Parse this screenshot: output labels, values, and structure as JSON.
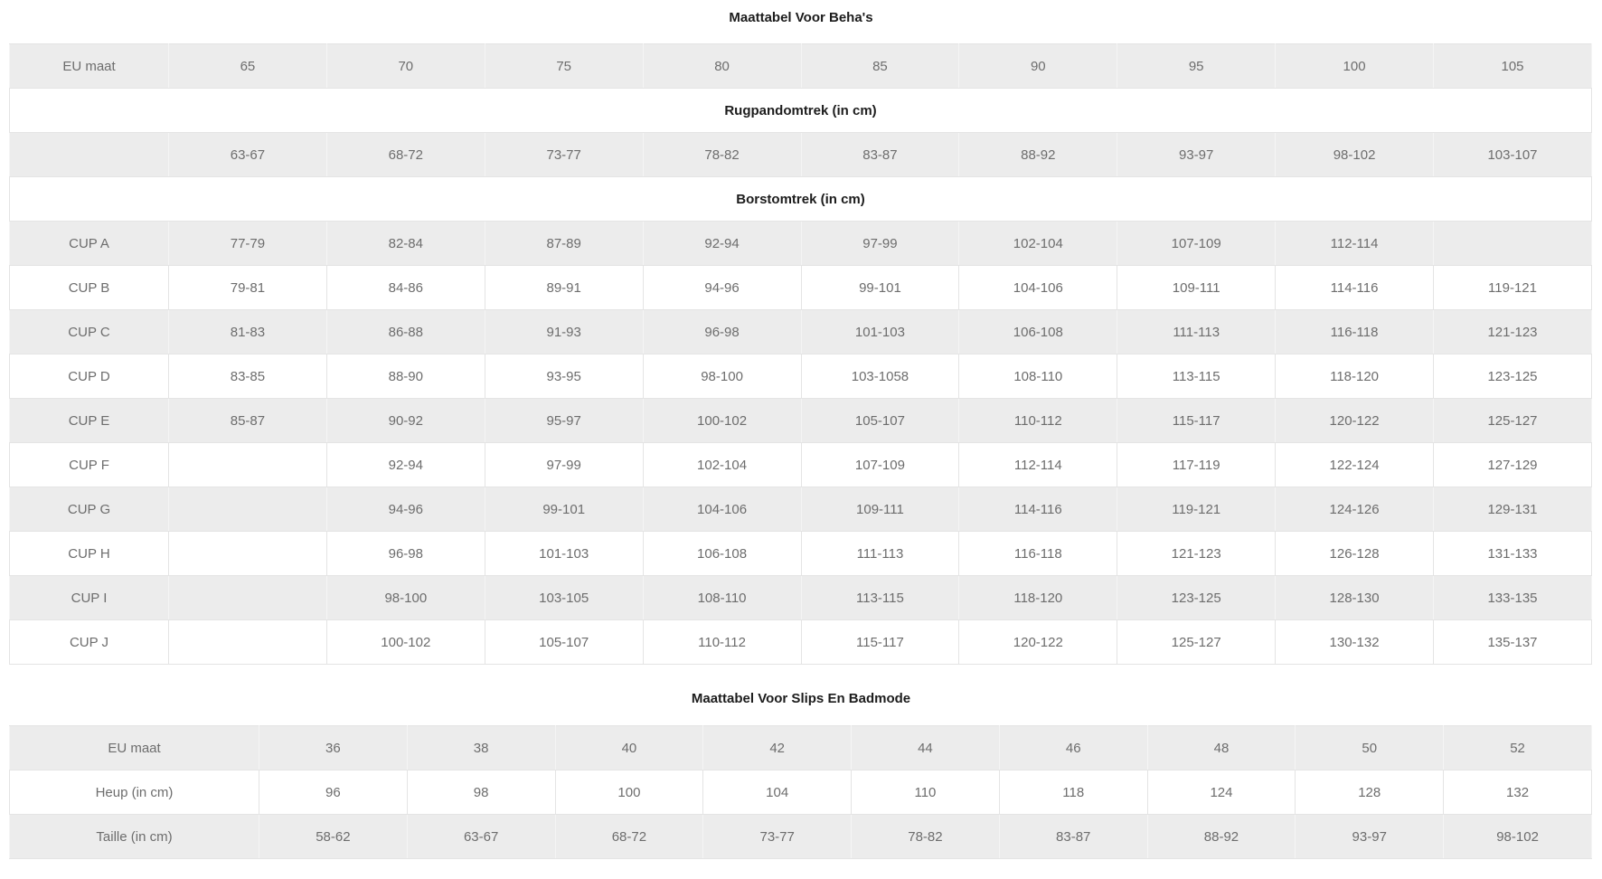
{
  "colors": {
    "stripe": "#ececec",
    "cell_text": "#6d6d6d",
    "heading_text": "#1c1c1c",
    "border": "#e4e4e4"
  },
  "tables": [
    {
      "title": "Maattabel Voor Beha's",
      "columns": 10,
      "rows": [
        {
          "type": "data",
          "shaded": true,
          "cells": [
            "EU maat",
            "65",
            "70",
            "75",
            "80",
            "85",
            "90",
            "95",
            "100",
            "105"
          ]
        },
        {
          "type": "section",
          "label": "Rugpandomtrek (in cm)"
        },
        {
          "type": "data",
          "shaded": true,
          "cells": [
            "",
            "63-67",
            "68-72",
            "73-77",
            "78-82",
            "83-87",
            "88-92",
            "93-97",
            "98-102",
            "103-107"
          ]
        },
        {
          "type": "section",
          "label": "Borstomtrek (in cm)"
        },
        {
          "type": "data",
          "shaded": true,
          "cells": [
            "CUP A",
            "77-79",
            "82-84",
            "87-89",
            "92-94",
            "97-99",
            "102-104",
            "107-109",
            "112-114",
            ""
          ]
        },
        {
          "type": "data",
          "shaded": false,
          "cells": [
            "CUP B",
            "79-81",
            "84-86",
            "89-91",
            "94-96",
            "99-101",
            "104-106",
            "109-111",
            "114-116",
            "119-121"
          ]
        },
        {
          "type": "data",
          "shaded": true,
          "cells": [
            "CUP C",
            "81-83",
            "86-88",
            "91-93",
            "96-98",
            "101-103",
            "106-108",
            "111-113",
            "116-118",
            "121-123"
          ]
        },
        {
          "type": "data",
          "shaded": false,
          "cells": [
            "CUP D",
            "83-85",
            "88-90",
            "93-95",
            "98-100",
            "103-1058",
            "108-110",
            "113-115",
            "118-120",
            "123-125"
          ]
        },
        {
          "type": "data",
          "shaded": true,
          "cells": [
            "CUP E",
            "85-87",
            "90-92",
            "95-97",
            "100-102",
            "105-107",
            "110-112",
            "115-117",
            "120-122",
            "125-127"
          ]
        },
        {
          "type": "data",
          "shaded": false,
          "cells": [
            "CUP F",
            "",
            "92-94",
            "97-99",
            "102-104",
            "107-109",
            "112-114",
            "117-119",
            "122-124",
            "127-129"
          ]
        },
        {
          "type": "data",
          "shaded": true,
          "cells": [
            "CUP G",
            "",
            "94-96",
            "99-101",
            "104-106",
            "109-111",
            "114-116",
            "119-121",
            "124-126",
            "129-131"
          ]
        },
        {
          "type": "data",
          "shaded": false,
          "cells": [
            "CUP H",
            "",
            "96-98",
            "101-103",
            "106-108",
            "111-113",
            "116-118",
            "121-123",
            "126-128",
            "131-133"
          ]
        },
        {
          "type": "data",
          "shaded": true,
          "cells": [
            "CUP I",
            "",
            "98-100",
            "103-105",
            "108-110",
            "113-115",
            "118-120",
            "123-125",
            "128-130",
            "133-135"
          ]
        },
        {
          "type": "data",
          "shaded": false,
          "cells": [
            "CUP J",
            "",
            "100-102",
            "105-107",
            "110-112",
            "115-117",
            "120-122",
            "125-127",
            "130-132",
            "135-137"
          ]
        }
      ]
    },
    {
      "title": "Maattabel Voor Slips En Badmode",
      "columns": 10,
      "rows": [
        {
          "type": "data",
          "shaded": true,
          "cells": [
            "EU maat",
            "36",
            "38",
            "40",
            "42",
            "44",
            "46",
            "48",
            "50",
            "52"
          ]
        },
        {
          "type": "data",
          "shaded": false,
          "cells": [
            "Heup (in cm)",
            "96",
            "98",
            "100",
            "104",
            "110",
            "118",
            "124",
            "128",
            "132"
          ]
        },
        {
          "type": "data",
          "shaded": true,
          "cells": [
            "Taille (in cm)",
            "58-62",
            "63-67",
            "68-72",
            "73-77",
            "78-82",
            "83-87",
            "88-92",
            "93-97",
            "98-102"
          ]
        }
      ]
    }
  ]
}
